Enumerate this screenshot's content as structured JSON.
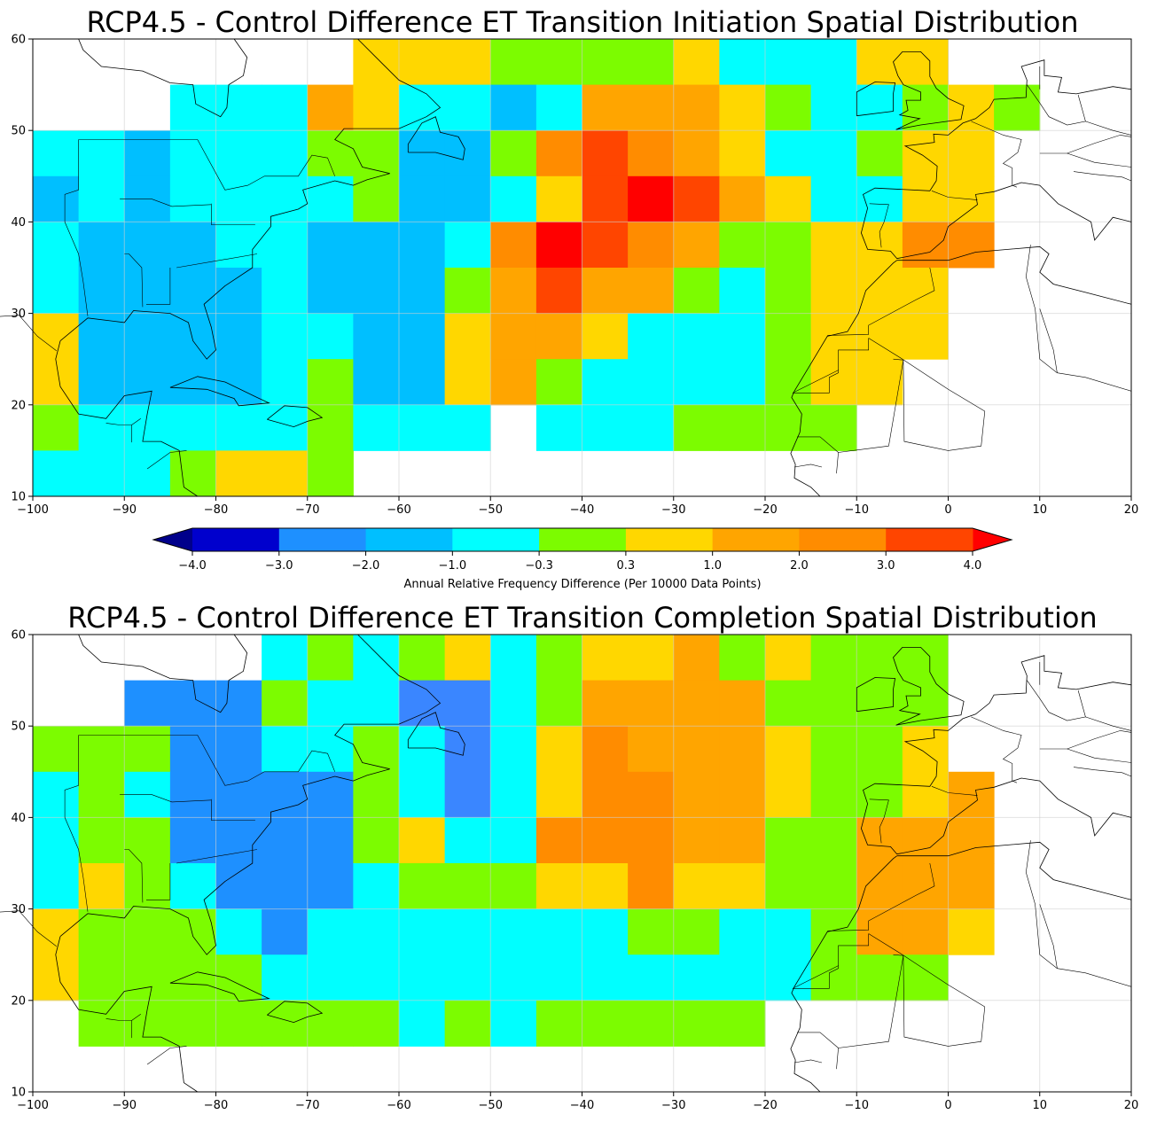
{
  "colorbar": {
    "label": "Annual Relative Frequency Difference (Per 10000 Data Points)",
    "boundaries": [
      -4.0,
      -3.0,
      -2.0,
      -1.0,
      -0.3,
      0.3,
      1.0,
      2.0,
      3.0,
      4.0
    ],
    "tick_labels": [
      "−4.0",
      "−3.0",
      "−2.0",
      "−1.0",
      "−0.3",
      "0.3",
      "1.0",
      "2.0",
      "3.0",
      "4.0"
    ],
    "under_color": "#00008b",
    "over_color": "#ff0000",
    "colors": [
      "#0000cd",
      "#1e90ff",
      "#00bfff",
      "#00ffff",
      "#7cfc00",
      "#ffd700",
      "#ffa500",
      "#ff8c00",
      "#ff4500"
    ],
    "extend": "both"
  },
  "chart_data": [
    {
      "type": "heatmap",
      "title": "RCP4.5 - Control Difference ET Transition Initiation Spatial Distribution",
      "xlim": [
        -100,
        20
      ],
      "ylim": [
        10,
        60
      ],
      "xticks": [
        -100,
        -90,
        -80,
        -70,
        -60,
        -50,
        -40,
        -30,
        -20,
        -10,
        0,
        10,
        20
      ],
      "yticks": [
        10,
        20,
        30,
        40,
        50,
        60
      ],
      "xtick_labels": [
        "−100",
        "−90",
        "−80",
        "−70",
        "−60",
        "−50",
        "−40",
        "−30",
        "−20",
        "−10",
        "0",
        "10",
        "20"
      ],
      "ytick_labels": [
        "10",
        "20",
        "30",
        "40",
        "50",
        "60"
      ],
      "grid": true,
      "cell_size_deg": 5,
      "lon_start": -100,
      "lat_start": 60,
      "rows": [
        ".......YYYYYGGGGOOOOY.CCC.",
        "......OOOOOYYYYGGGGYCCCC..",
        ".......ooooOOOOYYYYGCCCCY.",
        ".......ooooOOOOYYYYGCCCCY.",
        "..........................",
        "..........................",
        "..........................",
        "..........................",
        "..........................",
        ".........................."
      ],
      "cells": [
        "....................",
        "...................."
      ],
      "grid_rows": [
        ".......YYGGGGGYCCGY.....",
        "...CCOYCCCOOOYGCCYG.....",
        "CCBBCCGGBBGOrrOYCCYYYY..",
        "BBCBCCCGBBYrRrOYCCYYYY..",
        "CBBBCCCBBCOROOOGGYYYOO..",
        "CBBBBCBBBGORROOGCGYYYY..",
        "YBBBBCCBCYOOYCCCCGYYY...",
        "YBBBBCGBBYOGCCCCCYYY....",
        "GCCCCCGCCC.CCCGGGGG.....",
        "CCCGYYG.................."
      ]
    },
    {
      "type": "heatmap",
      "title": "RCP4.5 - Control Difference ET Transition Completion Spatial Distribution",
      "xlim": [
        -100,
        20
      ],
      "ylim": [
        10,
        60
      ],
      "xticks": [
        -100,
        -90,
        -80,
        -70,
        -60,
        -50,
        -40,
        -30,
        -20,
        -10,
        0,
        10,
        20
      ],
      "yticks": [
        10,
        20,
        30,
        40,
        50,
        60
      ],
      "xtick_labels": [
        "−100",
        "−90",
        "−80",
        "−70",
        "−60",
        "−50",
        "−40",
        "−30",
        "−20",
        "−10",
        "0",
        "10",
        "20"
      ],
      "ytick_labels": [
        "10",
        "20",
        "30",
        "40",
        "50",
        "60"
      ],
      "grid": true,
      "cell_size_deg": 5,
      "grid_rows": [
        ".....CGCGYCGYYOGYGGG....",
        "..SSSGCCDDCGOOOOGGGG....",
        "GGGSSCCGCDCYOOOOYGGY....",
        "CGCSSSSGCCCYOOOOYGGYOO..",
        "CGGSSSSGYCCOOOOOGGOOOO..",
        "CYGCSSSCGGGYYOYYGGOOOO..",
        "YGGGCSCCCCCCCGGCCGOOOY..",
        "YGGGGCCCCCCCCCCCCGGGG...",
        ".GGGGGGGCGCGGGGG........",
        "........................"
      ]
    }
  ]
}
